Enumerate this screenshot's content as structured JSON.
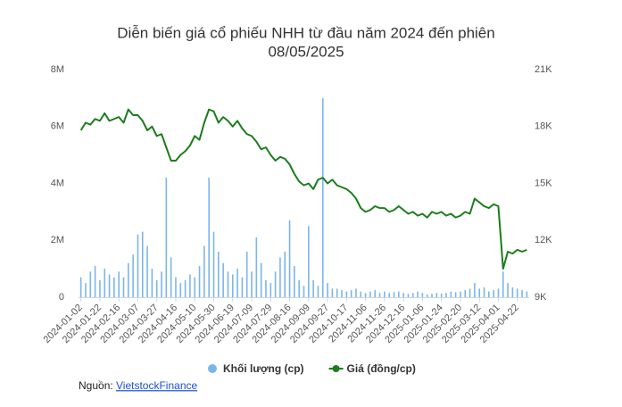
{
  "chart_data": {
    "type": "bar-line",
    "title": [
      "Diễn biến giá cổ phiếu NHH từ đầu năm 2024 đến phiên",
      "08/05/2025"
    ],
    "categories": [
      "2024-01-02",
      null,
      null,
      null,
      "2024-01-22",
      null,
      null,
      null,
      "2024-02-16",
      null,
      null,
      null,
      "2024-03-07",
      null,
      null,
      null,
      "2024-03-27",
      null,
      null,
      null,
      "2024-04-16",
      null,
      null,
      null,
      "2024-05-10",
      null,
      null,
      null,
      "2024-05-30",
      null,
      null,
      null,
      "2024-06-19",
      null,
      null,
      null,
      "2024-07-09",
      null,
      null,
      null,
      "2024-07-29",
      null,
      null,
      null,
      "2024-08-16",
      null,
      null,
      null,
      "2024-09-09",
      null,
      null,
      null,
      "2024-09-27",
      null,
      null,
      null,
      "2024-10-17",
      null,
      null,
      null,
      "2024-11-06",
      null,
      null,
      null,
      "2024-11-26",
      null,
      null,
      null,
      "2024-12-16",
      null,
      null,
      null,
      "2025-01-06",
      null,
      null,
      null,
      "2025-01-24",
      null,
      null,
      null,
      "2025-02-20",
      null,
      null,
      null,
      "2025-03-12",
      null,
      null,
      null,
      "2025-04-01",
      null,
      null,
      null,
      "2025-04-22",
      null,
      null
    ],
    "series": [
      {
        "name": "Khối lượng (cp)",
        "type": "bar",
        "color": "#7cb5ec",
        "values": [
          700000,
          500000,
          900000,
          1100000,
          600000,
          1000000,
          800000,
          700000,
          900000,
          700000,
          1200000,
          1500000,
          2200000,
          2300000,
          1800000,
          1000000,
          600000,
          900000,
          4200000,
          1400000,
          700000,
          500000,
          600000,
          800000,
          700000,
          1100000,
          1800000,
          4200000,
          2300000,
          1600000,
          1200000,
          900000,
          800000,
          1000000,
          700000,
          1600000,
          900000,
          2100000,
          1200000,
          600000,
          500000,
          900000,
          1400000,
          1600000,
          2700000,
          1100000,
          600000,
          400000,
          2500000,
          600000,
          400000,
          7000000,
          500000,
          300000,
          300000,
          250000,
          200000,
          250000,
          300000,
          200000,
          150000,
          200000,
          250000,
          150000,
          200000,
          150000,
          180000,
          200000,
          150000,
          120000,
          150000,
          200000,
          150000,
          100000,
          120000,
          150000,
          130000,
          150000,
          200000,
          180000,
          200000,
          250000,
          300000,
          500000,
          300000,
          350000,
          200000,
          250000,
          300000,
          900000,
          500000,
          350000,
          300000,
          250000,
          200000
        ]
      },
      {
        "name": "Giá (đồng/cp)",
        "type": "line",
        "axis": "y2",
        "color": "#1b7d1b",
        "values": [
          17800,
          18200,
          18100,
          18400,
          18300,
          18700,
          18300,
          18400,
          18500,
          18200,
          18900,
          18600,
          18600,
          18300,
          17800,
          18000,
          17500,
          17600,
          16900,
          16200,
          16200,
          16500,
          16700,
          17000,
          17500,
          17300,
          18200,
          18900,
          18800,
          18200,
          18500,
          18300,
          18000,
          18300,
          17900,
          17600,
          17500,
          17200,
          16800,
          16900,
          16500,
          16200,
          16400,
          16300,
          16000,
          15500,
          15100,
          14900,
          15000,
          14700,
          15200,
          15300,
          15000,
          15200,
          14900,
          14800,
          14700,
          14500,
          14200,
          13700,
          13500,
          13600,
          13800,
          13700,
          13700,
          13500,
          13600,
          13800,
          13600,
          13400,
          13500,
          13300,
          13400,
          13200,
          13500,
          13400,
          13500,
          13300,
          13400,
          13200,
          13300,
          13500,
          13400,
          14200,
          14000,
          13800,
          13700,
          13900,
          13800,
          10500,
          11400,
          11300,
          11500,
          11400,
          11500
        ]
      }
    ],
    "ylim": [
      0,
      8000000
    ],
    "yticks": [
      0,
      {
        "value": 2000000,
        "label": "2M"
      },
      {
        "value": 4000000,
        "label": "4M"
      },
      {
        "value": 6000000,
        "label": "6M"
      },
      {
        "value": 8000000,
        "label": "8M"
      }
    ],
    "y2lim": [
      9000,
      21000
    ],
    "y2ticks": [
      {
        "value": 9000,
        "label": "9K"
      },
      {
        "value": 12000,
        "label": "12K"
      },
      {
        "value": 15000,
        "label": "15K"
      },
      {
        "value": 18000,
        "label": "18K"
      },
      {
        "value": 21000,
        "label": "21K"
      }
    ],
    "grid": false,
    "legend": "bottom"
  },
  "source": {
    "label": "Nguồn:",
    "link": "VietstockFinance"
  }
}
